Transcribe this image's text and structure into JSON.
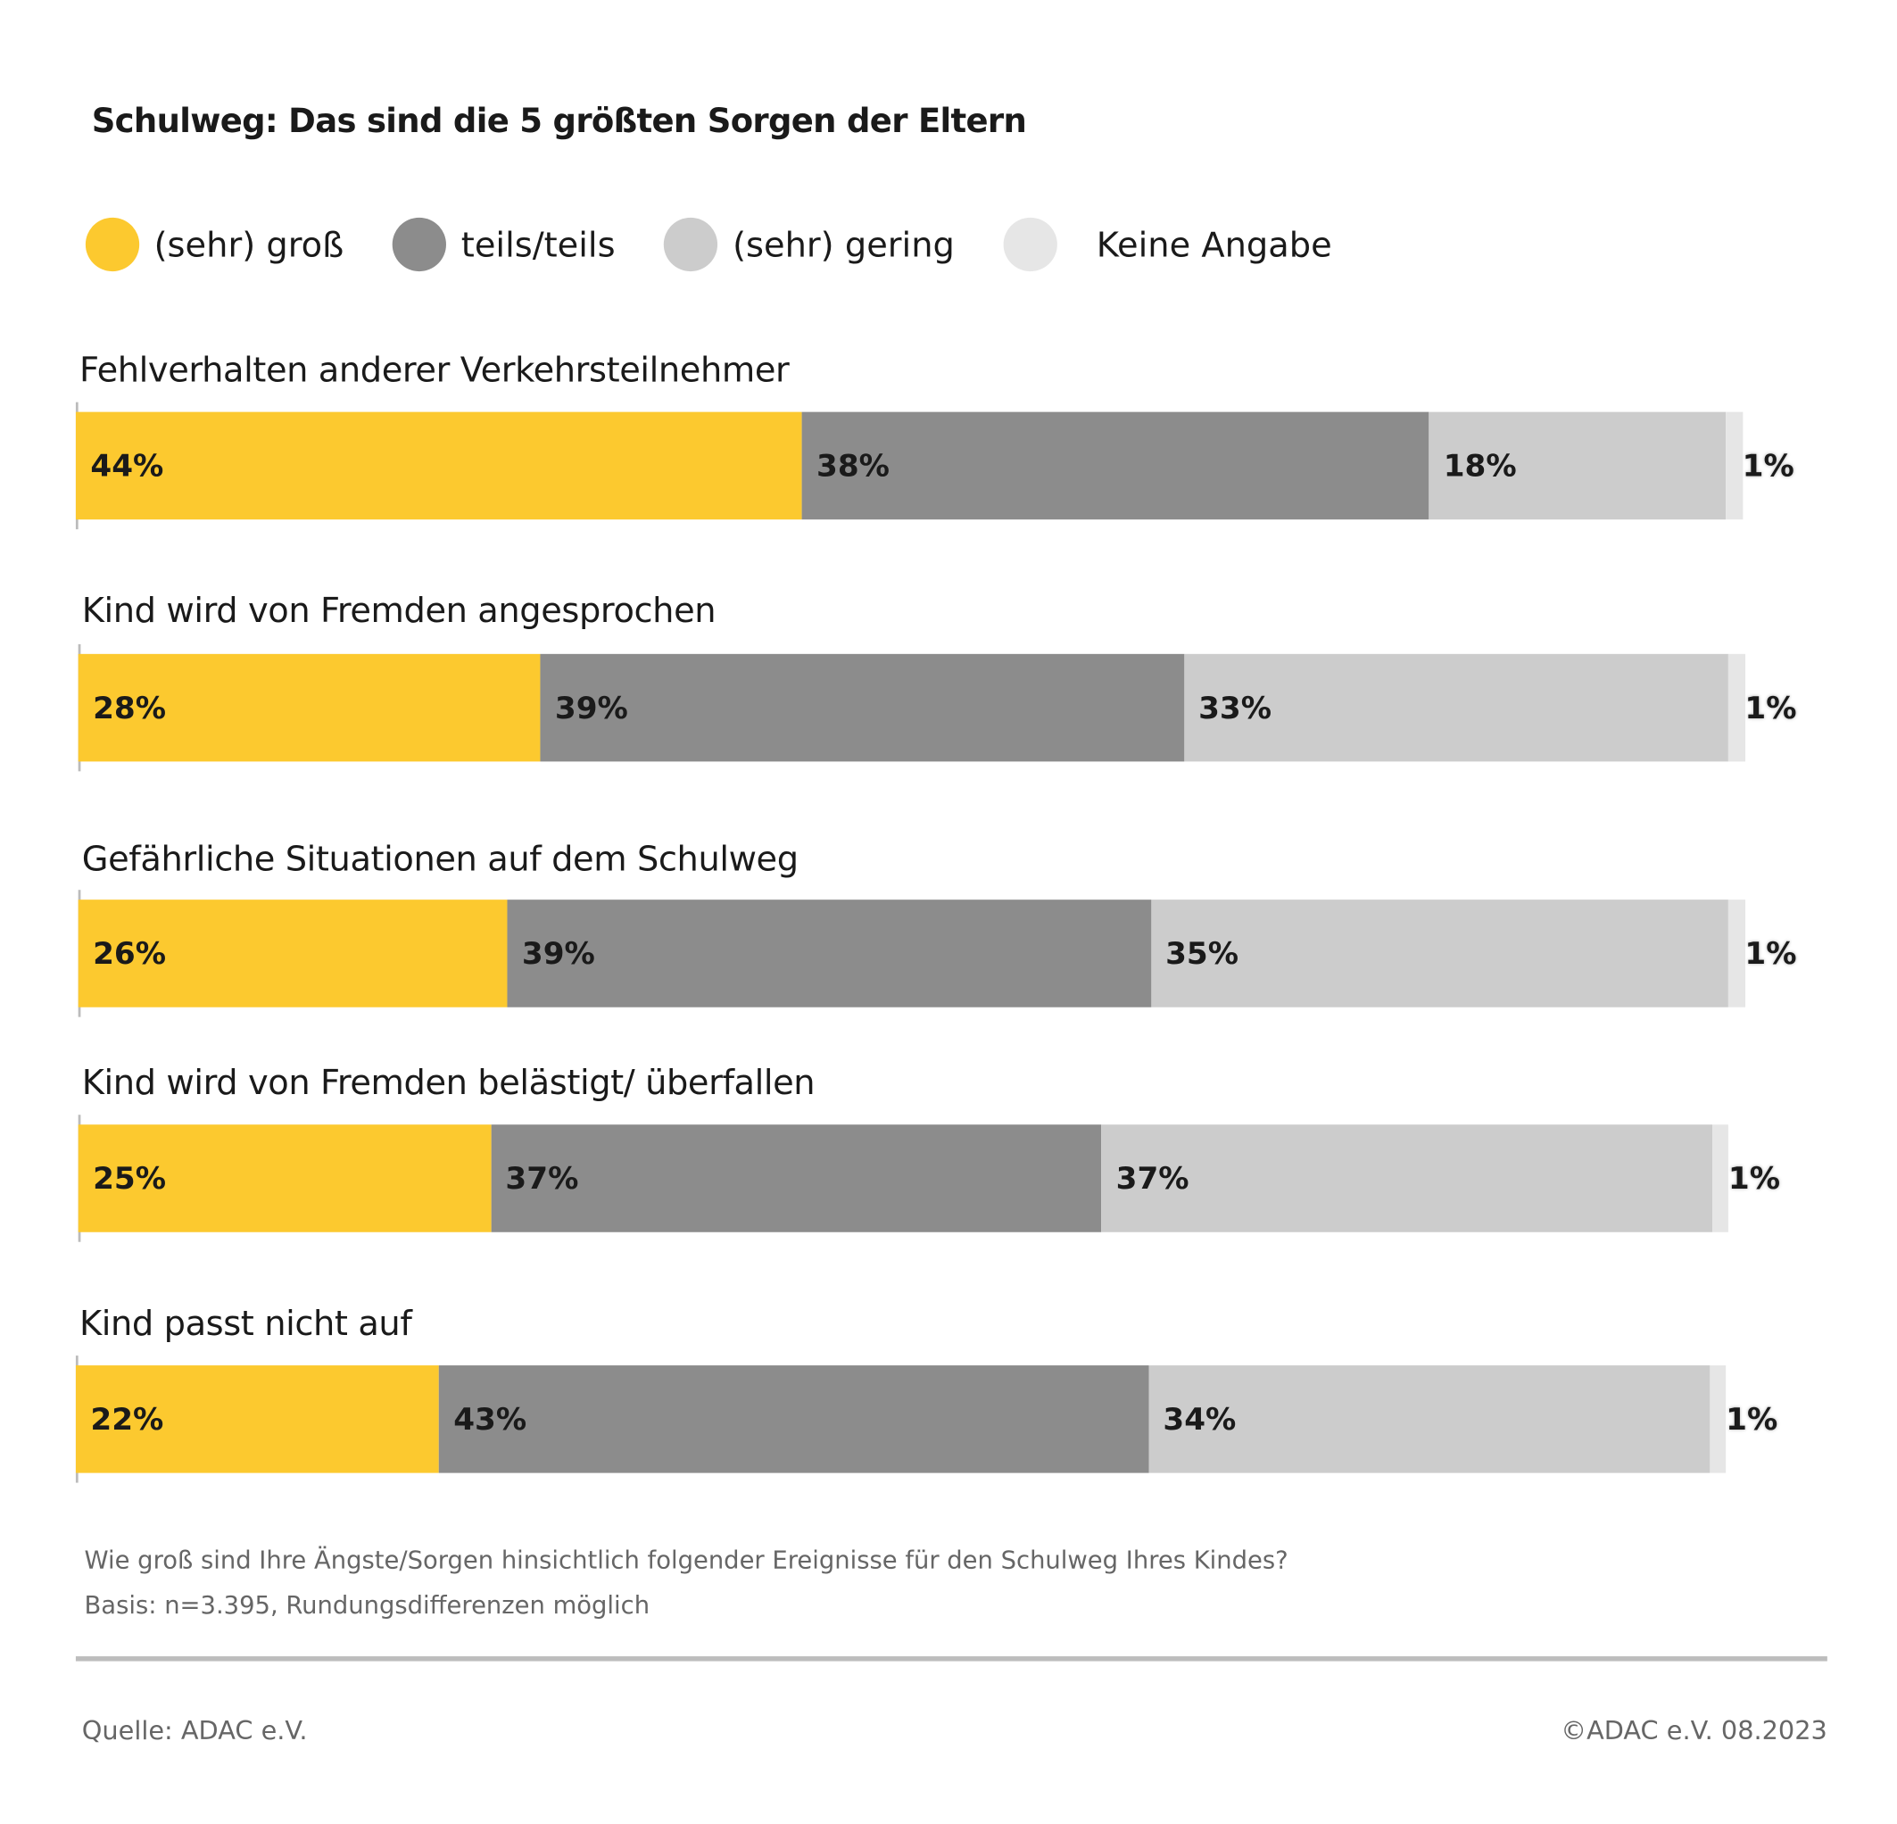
{
  "chart_data": {
    "type": "bar",
    "orientation": "horizontal",
    "stacked": true,
    "title": "Schulweg: Das sind die 5 größten Sorgen der Eltern",
    "legend_position": "top-left",
    "categories": [
      "Fehlverhalten anderer Verkehrsteilnehmer",
      "Kind wird von Fremden angesprochen",
      "Gefährliche Situationen auf dem Schulweg",
      "Kind wird von Fremden belästigt/ überfallen",
      "Kind passt nicht auf"
    ],
    "series": [
      {
        "name": "(sehr) groß",
        "color": "#fcc92f",
        "values": [
          44,
          28,
          26,
          25,
          22
        ]
      },
      {
        "name": "teils/teils",
        "color": "#8c8c8c",
        "values": [
          38,
          39,
          39,
          37,
          43
        ]
      },
      {
        "name": "(sehr) gering",
        "color": "#cccccc",
        "values": [
          18,
          33,
          35,
          37,
          34
        ]
      },
      {
        "name": "Keine Angabe",
        "color": "#e6e6e6",
        "values": [
          1,
          1,
          1,
          1,
          1
        ]
      }
    ]
  },
  "footnote": {
    "question": "Wie groß sind Ihre Ängste/Sorgen hinsichtlich folgender Ereignisse für den Schulweg Ihres Kindes?",
    "basis": "Basis: n=3.395, Rundungsdifferenzen möglich"
  },
  "source": "Quelle: ADAC e.V.",
  "copyright": "©ADAC e.V.  08.2023"
}
